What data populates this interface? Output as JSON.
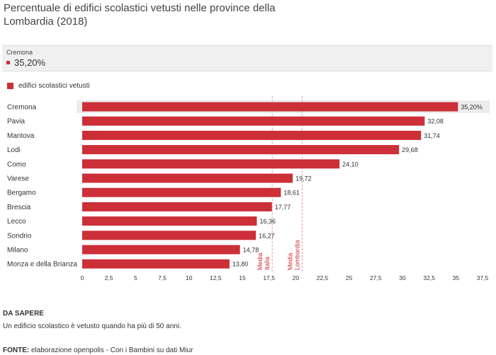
{
  "title": "Percentuale di edifici scolastici vetusti nelle province della Lombardia (2018)",
  "tooltip": {
    "label": "Cremona",
    "value": "35,20%"
  },
  "legend": {
    "label": "edifici scolastici vetusti"
  },
  "chart_data": {
    "type": "bar",
    "orientation": "horizontal",
    "title": "Percentuale di edifici scolastici vetusti nelle province della Lombardia (2018)",
    "series_name": "edifici scolastici vetusti",
    "categories": [
      "Cremona",
      "Pavia",
      "Mantova",
      "Lodi",
      "Como",
      "Varese",
      "Bergamo",
      "Brescia",
      "Lecco",
      "Sondrio",
      "Milano",
      "Monza e della Brianza"
    ],
    "values": [
      35.2,
      32.08,
      31.74,
      29.68,
      24.1,
      19.72,
      18.61,
      17.77,
      16.36,
      16.27,
      14.78,
      13.8
    ],
    "value_labels": [
      "35,20%",
      "32,08",
      "31,74",
      "29,68",
      "24,10",
      "19,72",
      "18,61",
      "17,77",
      "16,36",
      "16,27",
      "14,78",
      "13,80"
    ],
    "highlighted_index": 0,
    "xlim": [
      0,
      37.5
    ],
    "xticks": [
      0,
      2.5,
      5,
      7.5,
      10,
      12.5,
      15,
      17.5,
      20,
      22.5,
      25,
      27.5,
      30,
      32.5,
      35,
      37.5
    ],
    "xtick_labels": [
      "0",
      "2,5",
      "5",
      "7,5",
      "10",
      "12,5",
      "15",
      "17,5",
      "20",
      "22,5",
      "25",
      "27,5",
      "30",
      "32,5",
      "35",
      "37,5"
    ],
    "reference_lines": [
      {
        "label_lines": [
          "Media",
          "Italia"
        ],
        "value": 17.8
      },
      {
        "label_lines": [
          "Media",
          "Lombardia"
        ],
        "value": 20.6
      }
    ],
    "bar_color": "#cc2f38",
    "xlabel": "",
    "ylabel": ""
  },
  "note": {
    "heading": "DA SAPERE",
    "text": "Un edificio scolastico è vetusto quando ha più di 50 anni."
  },
  "source": {
    "label": "FONTE:",
    "text": " elaborazione openpolis - Con i Bambini su dati Miur"
  }
}
